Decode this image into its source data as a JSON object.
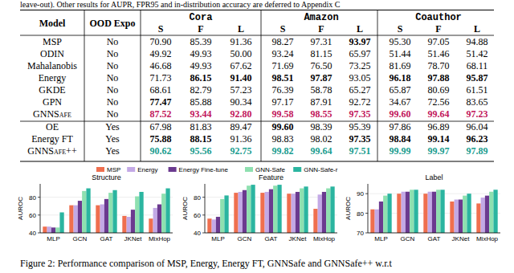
{
  "header_text": "leave-out). Other results for AUPR, FPR95 and in-distribution accuracy are deferred to Appendix C",
  "table": {
    "columns": [
      "Model",
      "OOD Expo"
    ],
    "datasets": [
      "Cora",
      "Amazon",
      "Coauthor"
    ],
    "subcolumns": [
      "S",
      "F",
      "L"
    ],
    "groups": [
      [
        {
          "model": "MSP",
          "ood_expo": "No",
          "values": [
            "70.90",
            "85.39",
            "91.36",
            "98.27",
            "97.31",
            "93.97",
            "95.30",
            "97.05",
            "94.88"
          ],
          "bold": [
            5
          ]
        },
        {
          "model": "ODIN",
          "ood_expo": "No",
          "values": [
            "49.92",
            "49.93",
            "50.00",
            "93.24",
            "81.15",
            "65.97",
            "51.44",
            "51.46",
            "51.42"
          ],
          "bold": []
        },
        {
          "model": "Mahalanobis",
          "ood_expo": "No",
          "values": [
            "46.68",
            "49.93",
            "67.62",
            "71.69",
            "76.50",
            "73.25",
            "81.69",
            "78.70",
            "68.11"
          ],
          "bold": []
        },
        {
          "model": "Energy",
          "ood_expo": "No",
          "values": [
            "71.73",
            "86.15",
            "91.40",
            "98.51",
            "97.87",
            "93.05",
            "96.18",
            "97.88",
            "95.87"
          ],
          "bold": [
            1,
            2,
            3,
            4,
            6,
            7,
            8
          ]
        },
        {
          "model": "GKDE",
          "ood_expo": "No",
          "values": [
            "68.61",
            "82.79",
            "57.23",
            "76.39",
            "58.78",
            "65.27",
            "65.87",
            "80.69",
            "61.51"
          ],
          "bold": []
        },
        {
          "model": "GPN",
          "ood_expo": "No",
          "values": [
            "77.47",
            "85.88",
            "90.34",
            "97.17",
            "87.91",
            "92.72",
            "34.67",
            "72.56",
            "83.65"
          ],
          "bold": [
            0
          ]
        },
        {
          "model": "GNNSafe",
          "ood_expo": "No",
          "values": [
            "87.52",
            "93.44",
            "92.80",
            "99.58",
            "98.55",
            "97.35",
            "99.60",
            "99.64",
            "97.23"
          ],
          "bold": [
            0,
            1,
            2,
            3,
            4,
            5,
            6,
            7,
            8
          ],
          "color": "#c2185b"
        }
      ],
      [
        {
          "model": "OE",
          "ood_expo": "Yes",
          "values": [
            "67.98",
            "81.83",
            "89.47",
            "99.60",
            "98.39",
            "95.39",
            "97.86",
            "96.89",
            "96.04"
          ],
          "bold": [
            3
          ]
        },
        {
          "model": "Energy FT",
          "ood_expo": "Yes",
          "values": [
            "75.88",
            "88.15",
            "91.36",
            "98.83",
            "98.02",
            "97.35",
            "98.84",
            "99.14",
            "96.23"
          ],
          "bold": [
            0,
            1,
            5,
            6,
            7,
            8
          ]
        },
        {
          "model": "GNNSafe++",
          "ood_expo": "Yes",
          "values": [
            "90.62",
            "95.56",
            "92.75",
            "99.82",
            "99.64",
            "97.51",
            "99.99",
            "99.97",
            "97.89"
          ],
          "bold": [
            0,
            1,
            2,
            3,
            4,
            5,
            6,
            7,
            8
          ],
          "color": "#1a9e8f"
        }
      ]
    ]
  },
  "chart_data": [
    {
      "type": "bar",
      "title": "Structure",
      "y_label": "AUROC",
      "categories": [
        "MLP",
        "GCN",
        "GAT",
        "JKNet",
        "MixHop"
      ],
      "ylim": [
        40,
        95
      ],
      "yticks": [
        40,
        60,
        80
      ],
      "grid": true,
      "legend": "top",
      "series": [
        {
          "name": "MSP",
          "color": "#ef6f4f",
          "values": [
            47,
            71,
            71,
            59,
            56
          ]
        },
        {
          "name": "Energy",
          "color": "#c3a9e6",
          "values": [
            47,
            71,
            72,
            58,
            68
          ]
        },
        {
          "name": "Energy Fine-tune",
          "color": "#6b3a8f",
          "values": [
            46,
            76,
            78,
            66,
            72
          ]
        },
        {
          "name": "GNN-Safe",
          "color": "#8ee0b0",
          "values": [
            46,
            87,
            85,
            81,
            84
          ]
        },
        {
          "name": "GNN-Safe-r",
          "color": "#2bb5a0",
          "values": [
            63,
            90,
            88,
            86,
            90
          ]
        }
      ]
    },
    {
      "type": "bar",
      "title": "Feature",
      "y_label": "AUROC",
      "categories": [
        "MLP",
        "GCN",
        "GAT",
        "JKNet",
        "MixHop"
      ],
      "ylim": [
        40,
        95
      ],
      "yticks": [
        40,
        60,
        80
      ],
      "grid": true,
      "series": [
        {
          "color": "#ef6f4f",
          "values": [
            56,
            85,
            85,
            84,
            67
          ]
        },
        {
          "color": "#c3a9e6",
          "values": [
            55,
            86,
            86,
            84,
            83
          ]
        },
        {
          "color": "#6b3a8f",
          "values": [
            58,
            88,
            89,
            86,
            86
          ]
        },
        {
          "color": "#8ee0b0",
          "values": [
            78,
            93,
            93,
            90,
            90
          ]
        },
        {
          "color": "#2bb5a0",
          "values": [
            82,
            94,
            94,
            92,
            92
          ]
        }
      ]
    },
    {
      "type": "bar",
      "title": "Label",
      "y_label": "AUROC",
      "categories": [
        "MLP",
        "GCN",
        "GAT",
        "JKNet",
        "MixHop"
      ],
      "ylim": [
        70,
        95
      ],
      "yticks": [
        70,
        80,
        90
      ],
      "grid": true,
      "series": [
        {
          "color": "#ef6f4f",
          "values": [
            82,
            90,
            90,
            86,
            85
          ]
        },
        {
          "color": "#c3a9e6",
          "values": [
            82,
            91,
            91,
            87,
            88
          ]
        },
        {
          "color": "#6b3a8f",
          "values": [
            86,
            91,
            91,
            87,
            89
          ]
        },
        {
          "color": "#8ee0b0",
          "values": [
            89,
            92,
            92,
            89,
            91
          ]
        },
        {
          "color": "#2bb5a0",
          "values": [
            90,
            92,
            92,
            90,
            92
          ]
        }
      ]
    }
  ],
  "caption": "Figure 2: Performance comparison of MSP, Energy, Energy FT, GNNSafe and GNNSafe++ w.r.t"
}
